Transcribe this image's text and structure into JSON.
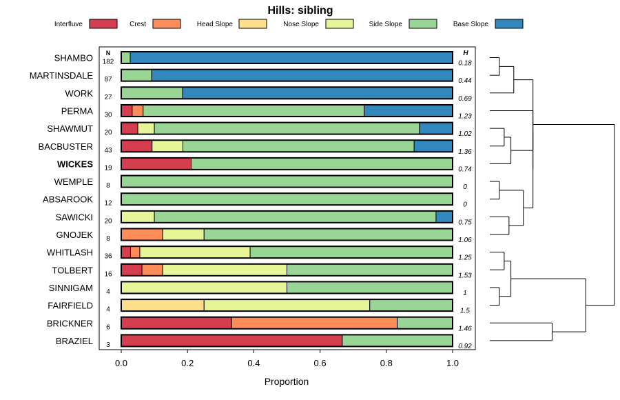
{
  "chart_data": {
    "type": "stacked-bar",
    "title": "Hills: sibling",
    "xlabel": "Proportion",
    "ylabel": "",
    "xlim": [
      0,
      1
    ],
    "x_ticks": [
      "0.0",
      "0.2",
      "0.4",
      "0.6",
      "0.8",
      "1.0"
    ],
    "n_header": "N",
    "h_header": "H",
    "legend": [
      {
        "name": "Interfluve",
        "color": "#d53e4f"
      },
      {
        "name": "Crest",
        "color": "#fc8d59"
      },
      {
        "name": "Head Slope",
        "color": "#fee08b"
      },
      {
        "name": "Nose Slope",
        "color": "#e6f598"
      },
      {
        "name": "Side Slope",
        "color": "#99d594"
      },
      {
        "name": "Base Slope",
        "color": "#3288bd"
      }
    ],
    "rows": [
      {
        "name": "SHAMBO",
        "n": "182",
        "h": "0.18",
        "bold": false,
        "values": [
          0,
          0,
          0,
          0,
          0.027,
          0.973
        ]
      },
      {
        "name": "MARTINSDALE",
        "n": "87",
        "h": "0.44",
        "bold": false,
        "values": [
          0,
          0,
          0,
          0,
          0.092,
          0.908
        ]
      },
      {
        "name": "WORK",
        "n": "27",
        "h": "0.69",
        "bold": false,
        "values": [
          0,
          0,
          0,
          0,
          0.185,
          0.815
        ]
      },
      {
        "name": "PERMA",
        "n": "30",
        "h": "1.23",
        "bold": false,
        "values": [
          0.033,
          0.033,
          0,
          0,
          0.667,
          0.267
        ]
      },
      {
        "name": "SHAWMUT",
        "n": "20",
        "h": "1.02",
        "bold": false,
        "values": [
          0.05,
          0,
          0,
          0.05,
          0.8,
          0.1
        ]
      },
      {
        "name": "BACBUSTER",
        "n": "43",
        "h": "1.36",
        "bold": false,
        "values": [
          0.093,
          0,
          0,
          0.093,
          0.698,
          0.116
        ]
      },
      {
        "name": "WICKES",
        "n": "19",
        "h": "0.74",
        "bold": true,
        "values": [
          0.211,
          0,
          0,
          0,
          0.789,
          0
        ]
      },
      {
        "name": "WEMPLE",
        "n": "8",
        "h": "0",
        "bold": false,
        "values": [
          0,
          0,
          0,
          0,
          1.0,
          0
        ]
      },
      {
        "name": "ABSAROOK",
        "n": "12",
        "h": "0",
        "bold": false,
        "values": [
          0,
          0,
          0,
          0,
          1.0,
          0
        ]
      },
      {
        "name": "SAWICKI",
        "n": "20",
        "h": "0.75",
        "bold": false,
        "values": [
          0,
          0,
          0,
          0.1,
          0.85,
          0.05
        ]
      },
      {
        "name": "GNOJEK",
        "n": "8",
        "h": "1.06",
        "bold": false,
        "values": [
          0,
          0.125,
          0,
          0.125,
          0.75,
          0
        ]
      },
      {
        "name": "WHITLASH",
        "n": "36",
        "h": "1.25",
        "bold": false,
        "values": [
          0.028,
          0.028,
          0,
          0.333,
          0.611,
          0
        ]
      },
      {
        "name": "TOLBERT",
        "n": "16",
        "h": "1.53",
        "bold": false,
        "values": [
          0.0625,
          0.0625,
          0,
          0.375,
          0.5,
          0
        ]
      },
      {
        "name": "SINNIGAM",
        "n": "4",
        "h": "1",
        "bold": false,
        "values": [
          0,
          0,
          0,
          0.5,
          0.5,
          0
        ]
      },
      {
        "name": "FAIRFIELD",
        "n": "4",
        "h": "1.5",
        "bold": false,
        "values": [
          0,
          0,
          0.25,
          0.5,
          0.25,
          0
        ]
      },
      {
        "name": "BRICKNER",
        "n": "6",
        "h": "1.46",
        "bold": false,
        "values": [
          0.333,
          0.5,
          0,
          0,
          0.167,
          0
        ]
      },
      {
        "name": "BRAZIEL",
        "n": "3",
        "h": "0.92",
        "bold": false,
        "values": [
          0.667,
          0,
          0,
          0,
          0.333,
          0
        ]
      }
    ],
    "dendrogram": {
      "merges": [
        {
          "a": 0,
          "b": 1,
          "height": 0.1
        },
        {
          "a": 7,
          "b": 8,
          "height": 0.1
        },
        {
          "a": 13,
          "b": 14,
          "height": 0.1
        },
        {
          "a": 4,
          "b": 5,
          "height": 0.15
        },
        {
          "a": 11,
          "b": 12,
          "height": 0.15
        },
        {
          "a": 9,
          "b": 10,
          "height": 0.2
        },
        {
          "a": "m3",
          "b": 6,
          "height": 0.22
        },
        {
          "a": "m0",
          "b": 2,
          "height": 0.25
        },
        {
          "a": "m4",
          "b": "m2",
          "height": 0.22
        },
        {
          "a": 3,
          "b": "m6",
          "height": 0.45
        },
        {
          "a": "m1",
          "b": "m5",
          "height": 0.35
        },
        {
          "a": "m9",
          "b": "m10",
          "height": 0.45
        },
        {
          "a": 15,
          "b": 16,
          "height": 0.65
        },
        {
          "a": "m8",
          "b": "m12",
          "height": 1.0
        },
        {
          "a": "m7",
          "b": "m11",
          "height": 0.45
        },
        {
          "a": "m14",
          "b": "m13",
          "height": 1.3
        }
      ]
    }
  }
}
